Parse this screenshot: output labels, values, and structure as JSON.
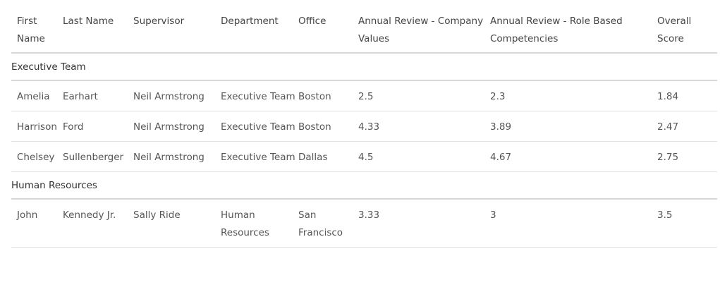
{
  "columns": [
    "First Name",
    "Last Name",
    "Supervisor",
    "Department",
    "Office",
    "Annual Review - Company Values",
    "Annual Review - Role Based Competencies",
    "Overall Score"
  ],
  "groups": [
    {
      "name": "Executive Team",
      "rows": [
        {
          "first": "Amelia",
          "last": "Earhart",
          "supervisor": "Neil Armstrong",
          "department": "Executive Team",
          "office": "Boston",
          "values": "2.5",
          "competencies": "2.3",
          "overall": "1.84"
        },
        {
          "first": "Harrison",
          "last": "Ford",
          "supervisor": "Neil Armstrong",
          "department": "Executive Team",
          "office": "Boston",
          "values": "4.33",
          "competencies": "3.89",
          "overall": "2.47"
        },
        {
          "first": "Chelsey",
          "last": "Sullenberger",
          "supervisor": "Neil Armstrong",
          "department": "Executive Team",
          "office": "Dallas",
          "values": "4.5",
          "competencies": "4.67",
          "overall": "2.75"
        }
      ]
    },
    {
      "name": "Human Resources",
      "rows": [
        {
          "first": "John",
          "last": "Kennedy Jr.",
          "supervisor": "Sally Ride",
          "department": "Human Resources",
          "office": "San Francisco",
          "values": "3.33",
          "competencies": "3",
          "overall": "3.5"
        }
      ]
    }
  ]
}
